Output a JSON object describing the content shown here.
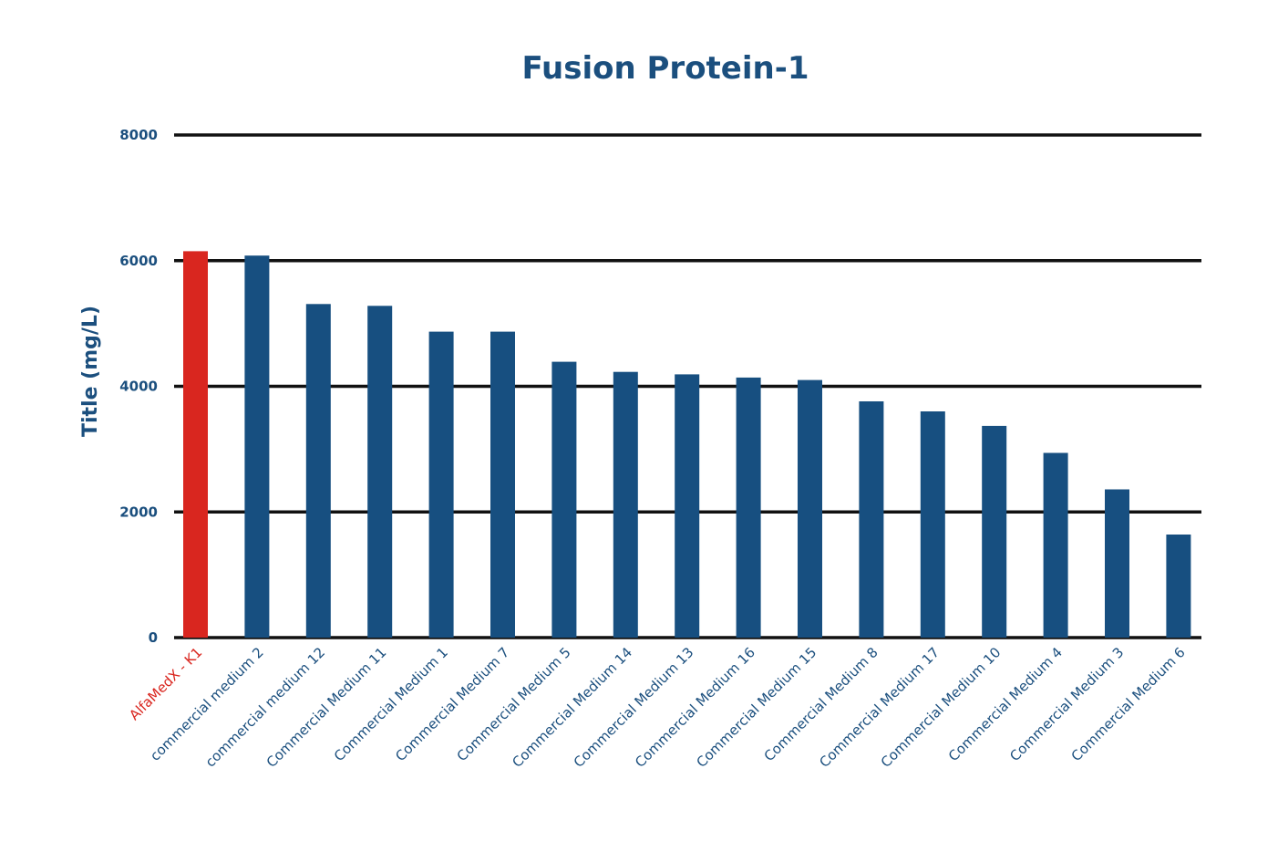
{
  "colors": {
    "text": "#1b4f7e",
    "bar": "#174f80",
    "highlight": "#d9261f",
    "grid": "#111111"
  },
  "chart_data": {
    "type": "bar",
    "title": "Fusion Protein-1",
    "xlabel": "",
    "ylabel": "Title (mg/L)",
    "ylim": [
      0,
      8000
    ],
    "yticks": [
      0,
      2000,
      4000,
      6000,
      8000
    ],
    "grid": "horizontal",
    "legend": "none",
    "highlight_index": 0,
    "categories": [
      "AlfaMedX - K1",
      "commercial medium 2",
      "commercial medium 12",
      "Commercial Medium 11",
      "Commercial Medium 1",
      "Commercial Medium 7",
      "Commercial Medium 5",
      "Commercial Medium 14",
      "Commercial Medium 13",
      "Commercial Medium 16",
      "Commercial Medium 15",
      "Commercial Medium 8",
      "Commercial Medium 17",
      "Commercial Medium 10",
      "Commercial Medium 4",
      "Commercial Medium 3",
      "Commercial Medium 6"
    ],
    "values": [
      6150,
      6080,
      5310,
      5280,
      4870,
      4870,
      4390,
      4230,
      4190,
      4140,
      4100,
      3760,
      3600,
      3370,
      2940,
      2360,
      1640
    ]
  }
}
